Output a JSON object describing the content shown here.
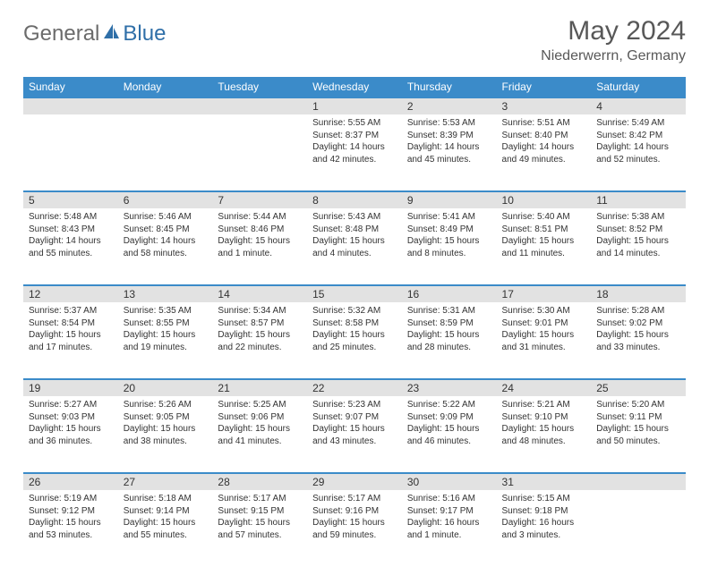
{
  "brand": {
    "part1": "General",
    "part2": "Blue"
  },
  "title": "May 2024",
  "subtitle": "Niederwerrn, Germany",
  "weekdays": [
    "Sunday",
    "Monday",
    "Tuesday",
    "Wednesday",
    "Thursday",
    "Friday",
    "Saturday"
  ],
  "colors": {
    "header_bg": "#3b8bc9",
    "daynum_bg": "#e2e2e2",
    "rule": "#3b8bc9",
    "text": "#333333",
    "title": "#585858"
  },
  "weeks": [
    [
      null,
      null,
      null,
      {
        "n": "1",
        "sr": "Sunrise: 5:55 AM",
        "ss": "Sunset: 8:37 PM",
        "dl": "Daylight: 14 hours and 42 minutes."
      },
      {
        "n": "2",
        "sr": "Sunrise: 5:53 AM",
        "ss": "Sunset: 8:39 PM",
        "dl": "Daylight: 14 hours and 45 minutes."
      },
      {
        "n": "3",
        "sr": "Sunrise: 5:51 AM",
        "ss": "Sunset: 8:40 PM",
        "dl": "Daylight: 14 hours and 49 minutes."
      },
      {
        "n": "4",
        "sr": "Sunrise: 5:49 AM",
        "ss": "Sunset: 8:42 PM",
        "dl": "Daylight: 14 hours and 52 minutes."
      }
    ],
    [
      {
        "n": "5",
        "sr": "Sunrise: 5:48 AM",
        "ss": "Sunset: 8:43 PM",
        "dl": "Daylight: 14 hours and 55 minutes."
      },
      {
        "n": "6",
        "sr": "Sunrise: 5:46 AM",
        "ss": "Sunset: 8:45 PM",
        "dl": "Daylight: 14 hours and 58 minutes."
      },
      {
        "n": "7",
        "sr": "Sunrise: 5:44 AM",
        "ss": "Sunset: 8:46 PM",
        "dl": "Daylight: 15 hours and 1 minute."
      },
      {
        "n": "8",
        "sr": "Sunrise: 5:43 AM",
        "ss": "Sunset: 8:48 PM",
        "dl": "Daylight: 15 hours and 4 minutes."
      },
      {
        "n": "9",
        "sr": "Sunrise: 5:41 AM",
        "ss": "Sunset: 8:49 PM",
        "dl": "Daylight: 15 hours and 8 minutes."
      },
      {
        "n": "10",
        "sr": "Sunrise: 5:40 AM",
        "ss": "Sunset: 8:51 PM",
        "dl": "Daylight: 15 hours and 11 minutes."
      },
      {
        "n": "11",
        "sr": "Sunrise: 5:38 AM",
        "ss": "Sunset: 8:52 PM",
        "dl": "Daylight: 15 hours and 14 minutes."
      }
    ],
    [
      {
        "n": "12",
        "sr": "Sunrise: 5:37 AM",
        "ss": "Sunset: 8:54 PM",
        "dl": "Daylight: 15 hours and 17 minutes."
      },
      {
        "n": "13",
        "sr": "Sunrise: 5:35 AM",
        "ss": "Sunset: 8:55 PM",
        "dl": "Daylight: 15 hours and 19 minutes."
      },
      {
        "n": "14",
        "sr": "Sunrise: 5:34 AM",
        "ss": "Sunset: 8:57 PM",
        "dl": "Daylight: 15 hours and 22 minutes."
      },
      {
        "n": "15",
        "sr": "Sunrise: 5:32 AM",
        "ss": "Sunset: 8:58 PM",
        "dl": "Daylight: 15 hours and 25 minutes."
      },
      {
        "n": "16",
        "sr": "Sunrise: 5:31 AM",
        "ss": "Sunset: 8:59 PM",
        "dl": "Daylight: 15 hours and 28 minutes."
      },
      {
        "n": "17",
        "sr": "Sunrise: 5:30 AM",
        "ss": "Sunset: 9:01 PM",
        "dl": "Daylight: 15 hours and 31 minutes."
      },
      {
        "n": "18",
        "sr": "Sunrise: 5:28 AM",
        "ss": "Sunset: 9:02 PM",
        "dl": "Daylight: 15 hours and 33 minutes."
      }
    ],
    [
      {
        "n": "19",
        "sr": "Sunrise: 5:27 AM",
        "ss": "Sunset: 9:03 PM",
        "dl": "Daylight: 15 hours and 36 minutes."
      },
      {
        "n": "20",
        "sr": "Sunrise: 5:26 AM",
        "ss": "Sunset: 9:05 PM",
        "dl": "Daylight: 15 hours and 38 minutes."
      },
      {
        "n": "21",
        "sr": "Sunrise: 5:25 AM",
        "ss": "Sunset: 9:06 PM",
        "dl": "Daylight: 15 hours and 41 minutes."
      },
      {
        "n": "22",
        "sr": "Sunrise: 5:23 AM",
        "ss": "Sunset: 9:07 PM",
        "dl": "Daylight: 15 hours and 43 minutes."
      },
      {
        "n": "23",
        "sr": "Sunrise: 5:22 AM",
        "ss": "Sunset: 9:09 PM",
        "dl": "Daylight: 15 hours and 46 minutes."
      },
      {
        "n": "24",
        "sr": "Sunrise: 5:21 AM",
        "ss": "Sunset: 9:10 PM",
        "dl": "Daylight: 15 hours and 48 minutes."
      },
      {
        "n": "25",
        "sr": "Sunrise: 5:20 AM",
        "ss": "Sunset: 9:11 PM",
        "dl": "Daylight: 15 hours and 50 minutes."
      }
    ],
    [
      {
        "n": "26",
        "sr": "Sunrise: 5:19 AM",
        "ss": "Sunset: 9:12 PM",
        "dl": "Daylight: 15 hours and 53 minutes."
      },
      {
        "n": "27",
        "sr": "Sunrise: 5:18 AM",
        "ss": "Sunset: 9:14 PM",
        "dl": "Daylight: 15 hours and 55 minutes."
      },
      {
        "n": "28",
        "sr": "Sunrise: 5:17 AM",
        "ss": "Sunset: 9:15 PM",
        "dl": "Daylight: 15 hours and 57 minutes."
      },
      {
        "n": "29",
        "sr": "Sunrise: 5:17 AM",
        "ss": "Sunset: 9:16 PM",
        "dl": "Daylight: 15 hours and 59 minutes."
      },
      {
        "n": "30",
        "sr": "Sunrise: 5:16 AM",
        "ss": "Sunset: 9:17 PM",
        "dl": "Daylight: 16 hours and 1 minute."
      },
      {
        "n": "31",
        "sr": "Sunrise: 5:15 AM",
        "ss": "Sunset: 9:18 PM",
        "dl": "Daylight: 16 hours and 3 minutes."
      },
      null
    ]
  ]
}
